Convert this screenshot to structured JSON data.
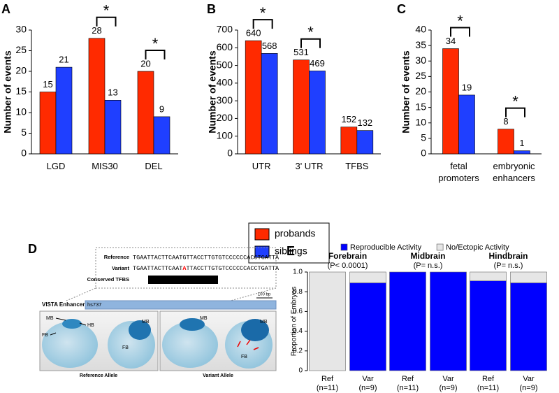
{
  "chart_data": [
    {
      "type": "bar",
      "label": "A",
      "ylabel": "Number of events",
      "categories": [
        "LGD",
        "MIS30",
        "DEL"
      ],
      "series": [
        {
          "name": "probands",
          "color": "#ff2a00",
          "values": [
            15,
            28,
            20
          ]
        },
        {
          "name": "siblings",
          "color": "#1f3fff",
          "values": [
            21,
            13,
            9
          ]
        }
      ],
      "ylim": [
        0,
        30
      ],
      "yticks": [
        0,
        5,
        10,
        15,
        20,
        25,
        30
      ],
      "significance": [
        {
          "category": 1,
          "label": "*"
        },
        {
          "category": 2,
          "label": "*"
        }
      ]
    },
    {
      "type": "bar",
      "label": "B",
      "ylabel": "Number of events",
      "categories": [
        "UTR",
        "3' UTR",
        "TFBS"
      ],
      "series": [
        {
          "color": "#ff2a00",
          "values": [
            640,
            531,
            152
          ]
        },
        {
          "color": "#1f3fff",
          "values": [
            568,
            469,
            132
          ]
        }
      ],
      "ylim": [
        0,
        700
      ],
      "yticks": [
        0,
        100,
        200,
        300,
        400,
        500,
        600,
        700
      ],
      "significance": [
        {
          "category": 0,
          "label": "*"
        },
        {
          "category": 1,
          "label": "*"
        }
      ]
    },
    {
      "type": "bar",
      "label": "C",
      "ylabel": "Number of events",
      "categories": [
        "fetal promoters",
        "embryonic enhancers"
      ],
      "series": [
        {
          "color": "#ff2a00",
          "values": [
            34,
            8
          ]
        },
        {
          "color": "#1f3fff",
          "values": [
            19,
            1
          ]
        }
      ],
      "ylim": [
        0,
        40
      ],
      "yticks": [
        0,
        5,
        10,
        15,
        20,
        25,
        30,
        35,
        40
      ],
      "significance": [
        {
          "category": 0,
          "label": "*"
        },
        {
          "category": 1,
          "label": "*"
        }
      ]
    },
    {
      "type": "stacked_bar",
      "label": "E",
      "ylabel": "Proportion of Embryos",
      "groups": [
        {
          "name": "Forebrain",
          "note": "(P< 0.0001)"
        },
        {
          "name": "Midbrain",
          "note": "(P= n.s.)"
        },
        {
          "name": "Hindbrain",
          "note": "(P= n.s.)"
        }
      ],
      "categories": [
        "Ref",
        "Var",
        "Ref",
        "Var",
        "Ref",
        "Var"
      ],
      "category_notes": [
        "(n=11)",
        "(n=9)",
        "(n=11)",
        "(n=9)",
        "(n=11)",
        "(n=9)"
      ],
      "series": [
        {
          "name": "Reproducible Activity",
          "color": "#0000ff",
          "values": [
            0,
            0.89,
            1,
            1,
            0.91,
            0.89
          ]
        },
        {
          "name": "No/Ectopic Activity",
          "color": "#e6e6e6",
          "values": [
            1,
            0.11,
            0,
            0,
            0.09,
            0.11
          ]
        }
      ],
      "ylim": [
        0,
        1
      ],
      "yticks": [
        0,
        0.2,
        0.4,
        0.6,
        0.8,
        {
          "value": 1,
          "label": "1.0"
        }
      ]
    }
  ],
  "panel_d": {
    "label": "D",
    "reference_label": "Reference",
    "reference_sequence": "TGAATTACTTCAATGTTACCTTGTGTCCCCCCACCTGATTA",
    "variant_label": "Variant",
    "variant_sequence": {
      "before": "TGAATTACTTCAAT",
      "variant": "A",
      "after": "TTACCTTGTGTCCCCCCACCTGATTA"
    },
    "tfbs_label": "Conserved TFBS",
    "tfbs_name": "RFX1",
    "track_label": "VISTA Enhancer",
    "enhancer_id": "hs737",
    "scale_label": "100 bp",
    "images": [
      {
        "caption": "Reference Allele",
        "annotations": [
          "MB",
          "HB",
          "FB",
          "MB",
          "FB"
        ]
      },
      {
        "caption": "Variant Allele",
        "annotations": [
          "MB",
          "MB",
          "FB"
        ]
      }
    ]
  }
}
